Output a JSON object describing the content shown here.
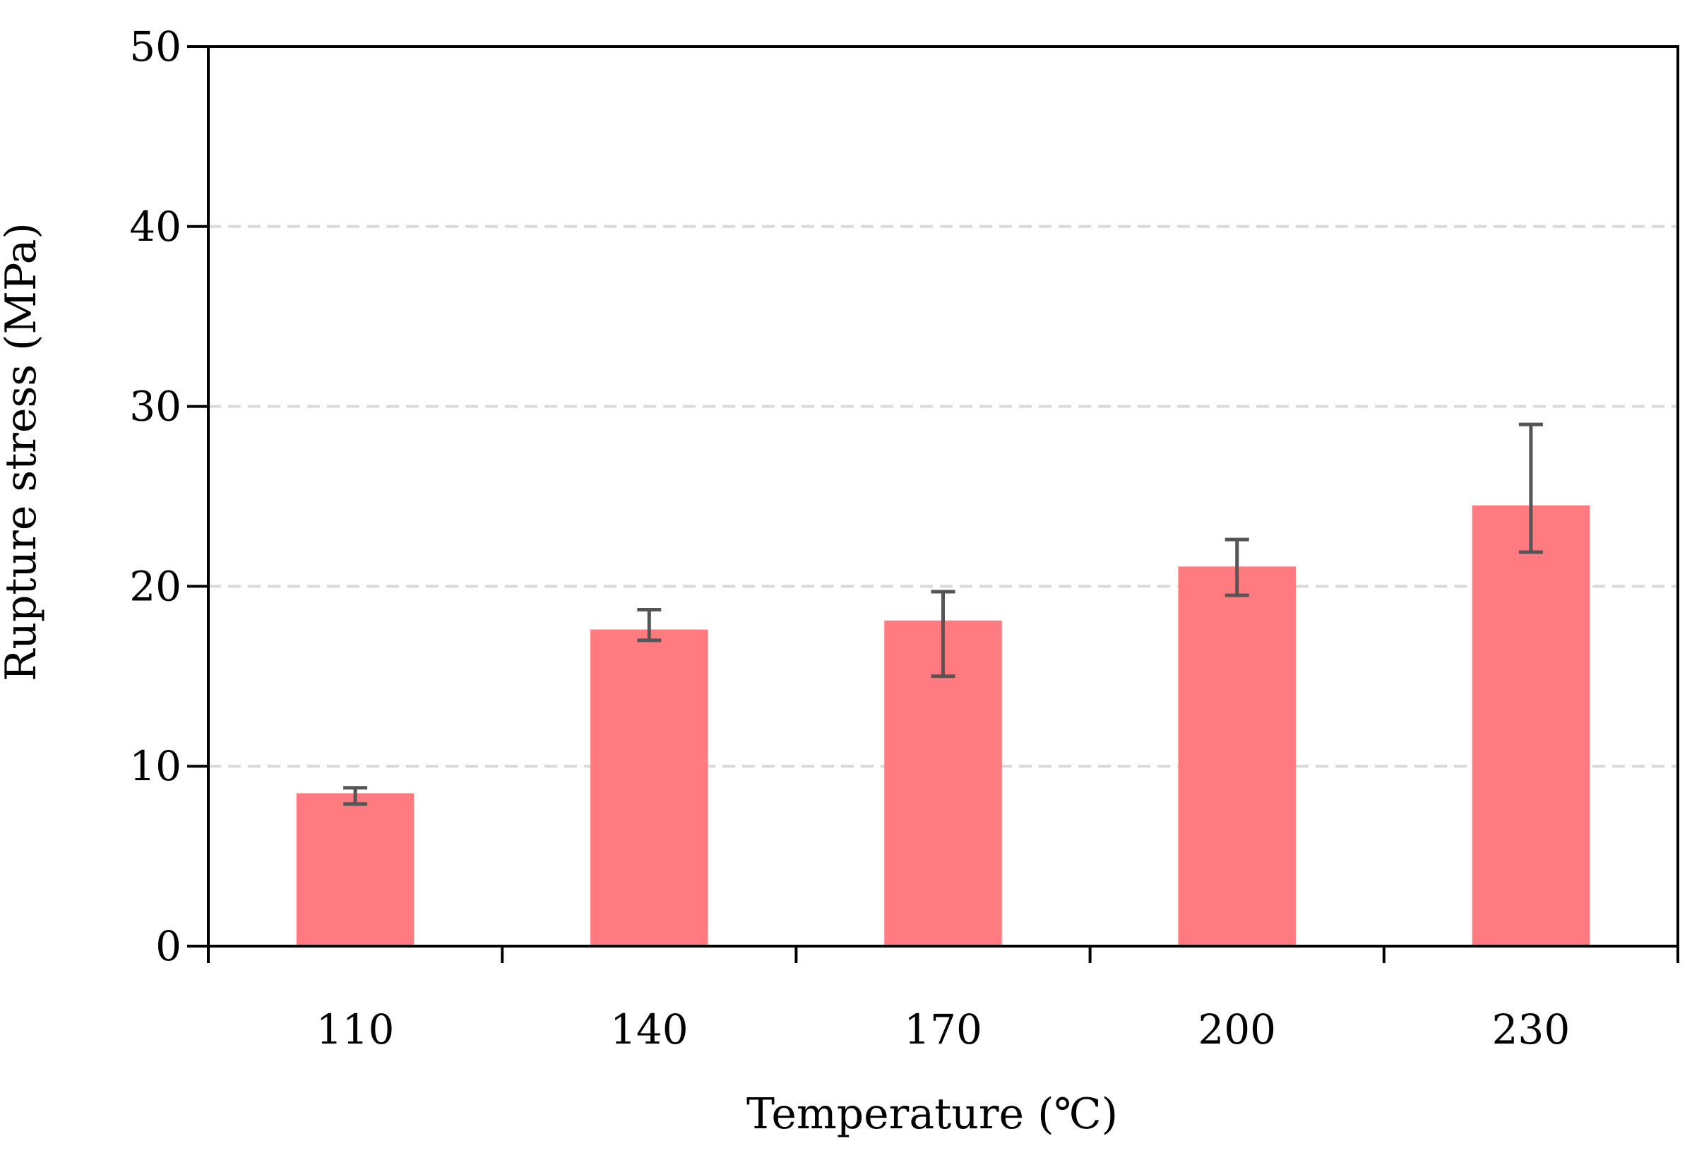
{
  "chart_data": {
    "type": "bar",
    "title": "",
    "xlabel": "Temperature (℃)",
    "ylabel": "Rupture stress (MPa)",
    "categories": [
      "110",
      "140",
      "170",
      "200",
      "230"
    ],
    "values": [
      8.5,
      17.6,
      18.1,
      21.1,
      24.5
    ],
    "error_low": [
      7.9,
      17.0,
      15.0,
      19.5,
      21.9
    ],
    "error_high": [
      8.8,
      18.7,
      19.7,
      22.6,
      29.0
    ],
    "ylim": [
      0,
      50
    ],
    "yticks": [
      "0",
      "10",
      "20",
      "30",
      "40",
      "50"
    ],
    "grid": "horizontal dashed",
    "colors": {
      "bar": "#ff7b80",
      "error_bar": "#555555",
      "grid": "#d9d9d9",
      "axis": "#000000"
    }
  }
}
